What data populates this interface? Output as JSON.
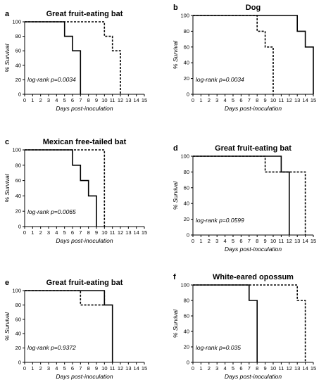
{
  "chart_data": [
    {
      "panel": "a",
      "type": "line",
      "title": "Great fruit-eating bat",
      "xlabel": "Days post-inoculation",
      "ylabel": "% Survival",
      "xlim": [
        0,
        15
      ],
      "ylim": [
        0,
        100
      ],
      "xticks": [
        0,
        1,
        2,
        3,
        4,
        5,
        6,
        7,
        8,
        9,
        10,
        11,
        12,
        13,
        14,
        15
      ],
      "yticks": [
        0,
        20,
        40,
        60,
        80,
        100
      ],
      "annotation": "log-rank p=0.0034",
      "series": [
        {
          "style": "solid",
          "x": [
            0,
            5,
            5,
            6,
            6,
            7,
            7
          ],
          "y": [
            100,
            100,
            80,
            80,
            60,
            60,
            0
          ]
        },
        {
          "style": "dashed",
          "x": [
            0,
            10,
            10,
            11,
            11,
            12,
            12
          ],
          "y": [
            100,
            100,
            80,
            80,
            60,
            60,
            0
          ]
        }
      ]
    },
    {
      "panel": "b",
      "type": "line",
      "title": "Dog",
      "xlabel": "Days post-inoculation",
      "ylabel": "% Survival",
      "xlim": [
        0,
        15
      ],
      "ylim": [
        0,
        100
      ],
      "xticks": [
        0,
        1,
        2,
        3,
        4,
        5,
        6,
        7,
        8,
        9,
        10,
        11,
        12,
        13,
        14,
        15
      ],
      "yticks": [
        0,
        20,
        40,
        60,
        80,
        100
      ],
      "annotation": "log-rank p=0.0034",
      "series": [
        {
          "style": "solid",
          "x": [
            0,
            13,
            13,
            14,
            14,
            15,
            15
          ],
          "y": [
            100,
            100,
            80,
            80,
            60,
            60,
            0
          ]
        },
        {
          "style": "dashed",
          "x": [
            0,
            8,
            8,
            9,
            9,
            10,
            10
          ],
          "y": [
            100,
            100,
            80,
            80,
            60,
            60,
            0
          ]
        }
      ]
    },
    {
      "panel": "c",
      "type": "line",
      "title": "Mexican free-tailed bat",
      "xlabel": "Days post-inoculation",
      "ylabel": "% Survival",
      "xlim": [
        0,
        15
      ],
      "ylim": [
        0,
        100
      ],
      "xticks": [
        0,
        1,
        2,
        3,
        4,
        5,
        6,
        7,
        8,
        9,
        10,
        11,
        12,
        13,
        14,
        15
      ],
      "yticks": [
        0,
        20,
        40,
        60,
        80,
        100
      ],
      "annotation": "log-rank p=0.0065",
      "series": [
        {
          "style": "solid",
          "x": [
            0,
            6,
            6,
            7,
            7,
            8,
            8,
            9,
            9
          ],
          "y": [
            100,
            100,
            80,
            80,
            60,
            60,
            40,
            40,
            0
          ]
        },
        {
          "style": "dashed",
          "x": [
            0,
            10,
            10
          ],
          "y": [
            100,
            100,
            0
          ]
        }
      ]
    },
    {
      "panel": "d",
      "type": "line",
      "title": "Great fruit-eating bat",
      "xlabel": "Days post-inoculation",
      "ylabel": "% Survival",
      "xlim": [
        0,
        15
      ],
      "ylim": [
        0,
        100
      ],
      "xticks": [
        0,
        1,
        2,
        3,
        4,
        5,
        6,
        7,
        8,
        9,
        10,
        11,
        12,
        13,
        14,
        15
      ],
      "yticks": [
        0,
        20,
        40,
        60,
        80,
        100
      ],
      "annotation": "log-rank p=0.0599",
      "series": [
        {
          "style": "solid",
          "x": [
            0,
            11,
            11,
            12,
            12
          ],
          "y": [
            100,
            100,
            80,
            80,
            0
          ]
        },
        {
          "style": "dashed",
          "x": [
            0,
            9,
            9,
            14,
            14
          ],
          "y": [
            100,
            100,
            80,
            80,
            0
          ]
        }
      ]
    },
    {
      "panel": "e",
      "type": "line",
      "title": "Great fruit-eating bat",
      "xlabel": "Days post-inoculation",
      "ylabel": "% Survival",
      "xlim": [
        0,
        15
      ],
      "ylim": [
        0,
        100
      ],
      "xticks": [
        0,
        1,
        2,
        3,
        4,
        5,
        6,
        7,
        8,
        9,
        10,
        11,
        12,
        13,
        14,
        15
      ],
      "yticks": [
        0,
        20,
        40,
        60,
        80,
        100
      ],
      "annotation": "log-rank p=0.9372",
      "series": [
        {
          "style": "solid",
          "x": [
            0,
            10,
            10,
            11,
            11
          ],
          "y": [
            100,
            100,
            80,
            80,
            0
          ]
        },
        {
          "style": "dashed",
          "x": [
            0,
            7,
            7,
            10,
            10
          ],
          "y": [
            100,
            100,
            80,
            80,
            100
          ]
        }
      ]
    },
    {
      "panel": "f",
      "type": "line",
      "title": "White-eared opossum",
      "xlabel": "Days post-inoculation",
      "ylabel": "% Survival",
      "xlim": [
        0,
        15
      ],
      "ylim": [
        0,
        100
      ],
      "xticks": [
        0,
        1,
        2,
        3,
        4,
        5,
        6,
        7,
        8,
        9,
        10,
        11,
        12,
        13,
        14,
        15
      ],
      "yticks": [
        0,
        20,
        40,
        60,
        80,
        100
      ],
      "annotation": "log-rank p=0.035",
      "series": [
        {
          "style": "solid",
          "x": [
            0,
            7,
            7,
            8,
            8
          ],
          "y": [
            100,
            100,
            80,
            80,
            0
          ]
        },
        {
          "style": "dashed",
          "x": [
            0,
            13,
            13,
            14,
            14
          ],
          "y": [
            100,
            100,
            80,
            80,
            0
          ]
        }
      ]
    }
  ]
}
